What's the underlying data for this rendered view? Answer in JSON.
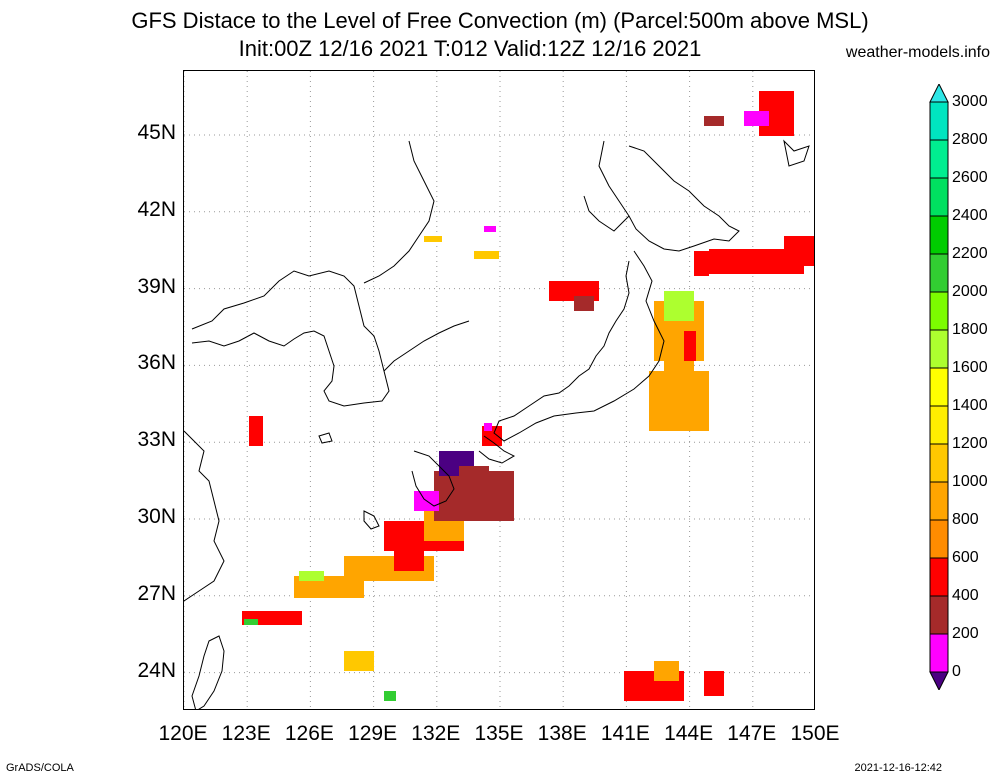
{
  "header": {
    "title_line1": "GFS Distace to the Level of Free Convection (m) (Parcel:500m above MSL)",
    "title_line2": "Init:00Z 12/16 2021 T:012 Valid:12Z 12/16 2021",
    "site": "weather-models.info"
  },
  "map": {
    "lon_range": [
      120,
      150
    ],
    "lat_range": [
      22.5,
      47.5
    ],
    "lat_labels": [
      "45N",
      "42N",
      "39N",
      "36N",
      "33N",
      "30N",
      "27N",
      "24N"
    ],
    "lat_values": [
      45,
      42,
      39,
      36,
      33,
      30,
      27,
      24
    ],
    "lon_labels": [
      "120E",
      "123E",
      "126E",
      "129E",
      "132E",
      "135E",
      "138E",
      "141E",
      "144E",
      "147E",
      "150E"
    ],
    "lon_values": [
      120,
      123,
      126,
      129,
      132,
      135,
      138,
      141,
      144,
      147,
      150
    ],
    "grid": "dotted"
  },
  "colorbar": {
    "labels": [
      "0",
      "200",
      "400",
      "600",
      "800",
      "1000",
      "1200",
      "1400",
      "1600",
      "1800",
      "2000",
      "2200",
      "2400",
      "2600",
      "2800",
      "3000"
    ],
    "colors": [
      "#4b0082",
      "#ff00ff",
      "#a52a2a",
      "#ff0000",
      "#ff8c00",
      "#ffa500",
      "#ffc800",
      "#ffee00",
      "#ffff00",
      "#adff2f",
      "#7cfc00",
      "#32cd32",
      "#00cc00",
      "#00e060",
      "#00ee90",
      "#00e5c0"
    ],
    "top_color": "#2ee6e6"
  },
  "footer": {
    "left": "GrADS/COLA",
    "right": "2021-12-16-12:42"
  }
}
